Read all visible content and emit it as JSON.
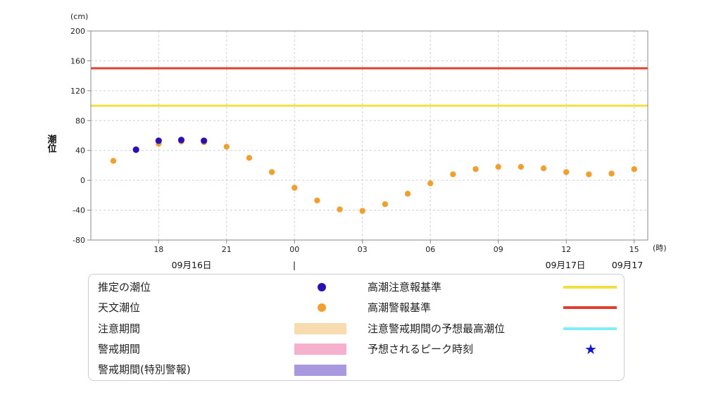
{
  "chart_data": {
    "type": "scatter",
    "ylabel": "潮位",
    "yunit": "(cm)",
    "xunit": "(時)",
    "ylim": [
      -80,
      200
    ],
    "yticks": [
      200,
      160,
      120,
      80,
      40,
      0,
      -40,
      -80
    ],
    "xticks": [
      "18",
      "21",
      "00",
      "03",
      "06",
      "09",
      "12",
      "15"
    ],
    "date_labels": [
      "09月16日",
      "|",
      "09月17日",
      "09月17"
    ],
    "grid": true,
    "series": [
      {
        "name": "推定の潮位",
        "color": "#2a10b8",
        "x": [
          "09/16 17:00",
          "09/16 18:00",
          "09/16 19:00",
          "09/16 20:00"
        ],
        "y": [
          41,
          53,
          54,
          53
        ]
      },
      {
        "name": "天文潮位",
        "color": "#f0a030",
        "x": [
          "09/16 16:00",
          "09/16 17:00",
          "09/16 18:00",
          "09/16 19:00",
          "09/16 20:00",
          "09/16 21:00",
          "09/16 22:00",
          "09/16 23:00",
          "09/17 00:00",
          "09/17 01:00",
          "09/17 02:00",
          "09/17 03:00",
          "09/17 04:00",
          "09/17 05:00",
          "09/17 06:00",
          "09/17 07:00",
          "09/17 08:00",
          "09/17 09:00",
          "09/17 10:00",
          "09/17 11:00",
          "09/17 12:00",
          "09/17 13:00",
          "09/17 14:00",
          "09/17 15:00"
        ],
        "y": [
          26,
          41,
          49,
          52,
          51,
          45,
          30,
          11,
          -10,
          -27,
          -39,
          -41,
          -32,
          -18,
          -4,
          8,
          15,
          18,
          18,
          16,
          11,
          8,
          9,
          15
        ]
      }
    ],
    "reference_lines": [
      {
        "name": "高潮注意報基準",
        "value": 100,
        "color": "#f0e040"
      },
      {
        "name": "高潮警報基準",
        "value": 150,
        "color": "#e04030"
      }
    ]
  },
  "legend": {
    "items": [
      {
        "label": "推定の潮位"
      },
      {
        "label": "天文潮位"
      },
      {
        "label": "注意期間"
      },
      {
        "label": "警戒期間"
      },
      {
        "label": "警戒期間(特別警報)"
      },
      {
        "label": "高潮注意報基準"
      },
      {
        "label": "高潮警報基準"
      },
      {
        "label": "注意警戒期間の予想最高潮位"
      },
      {
        "label": "予想されるピーク時刻"
      }
    ],
    "colors": {
      "estimated": "#2a10b8",
      "astronomical": "#f0a030",
      "caution_period": "#f8dcb0",
      "warning_period": "#f4b0cc",
      "special_warning_period": "#a898e0",
      "advisory_line": "#f0e040",
      "warning_line": "#e04030",
      "max_tide_line": "#80f0f8",
      "peak_star": "#1018d0"
    },
    "star_glyph": "★"
  }
}
